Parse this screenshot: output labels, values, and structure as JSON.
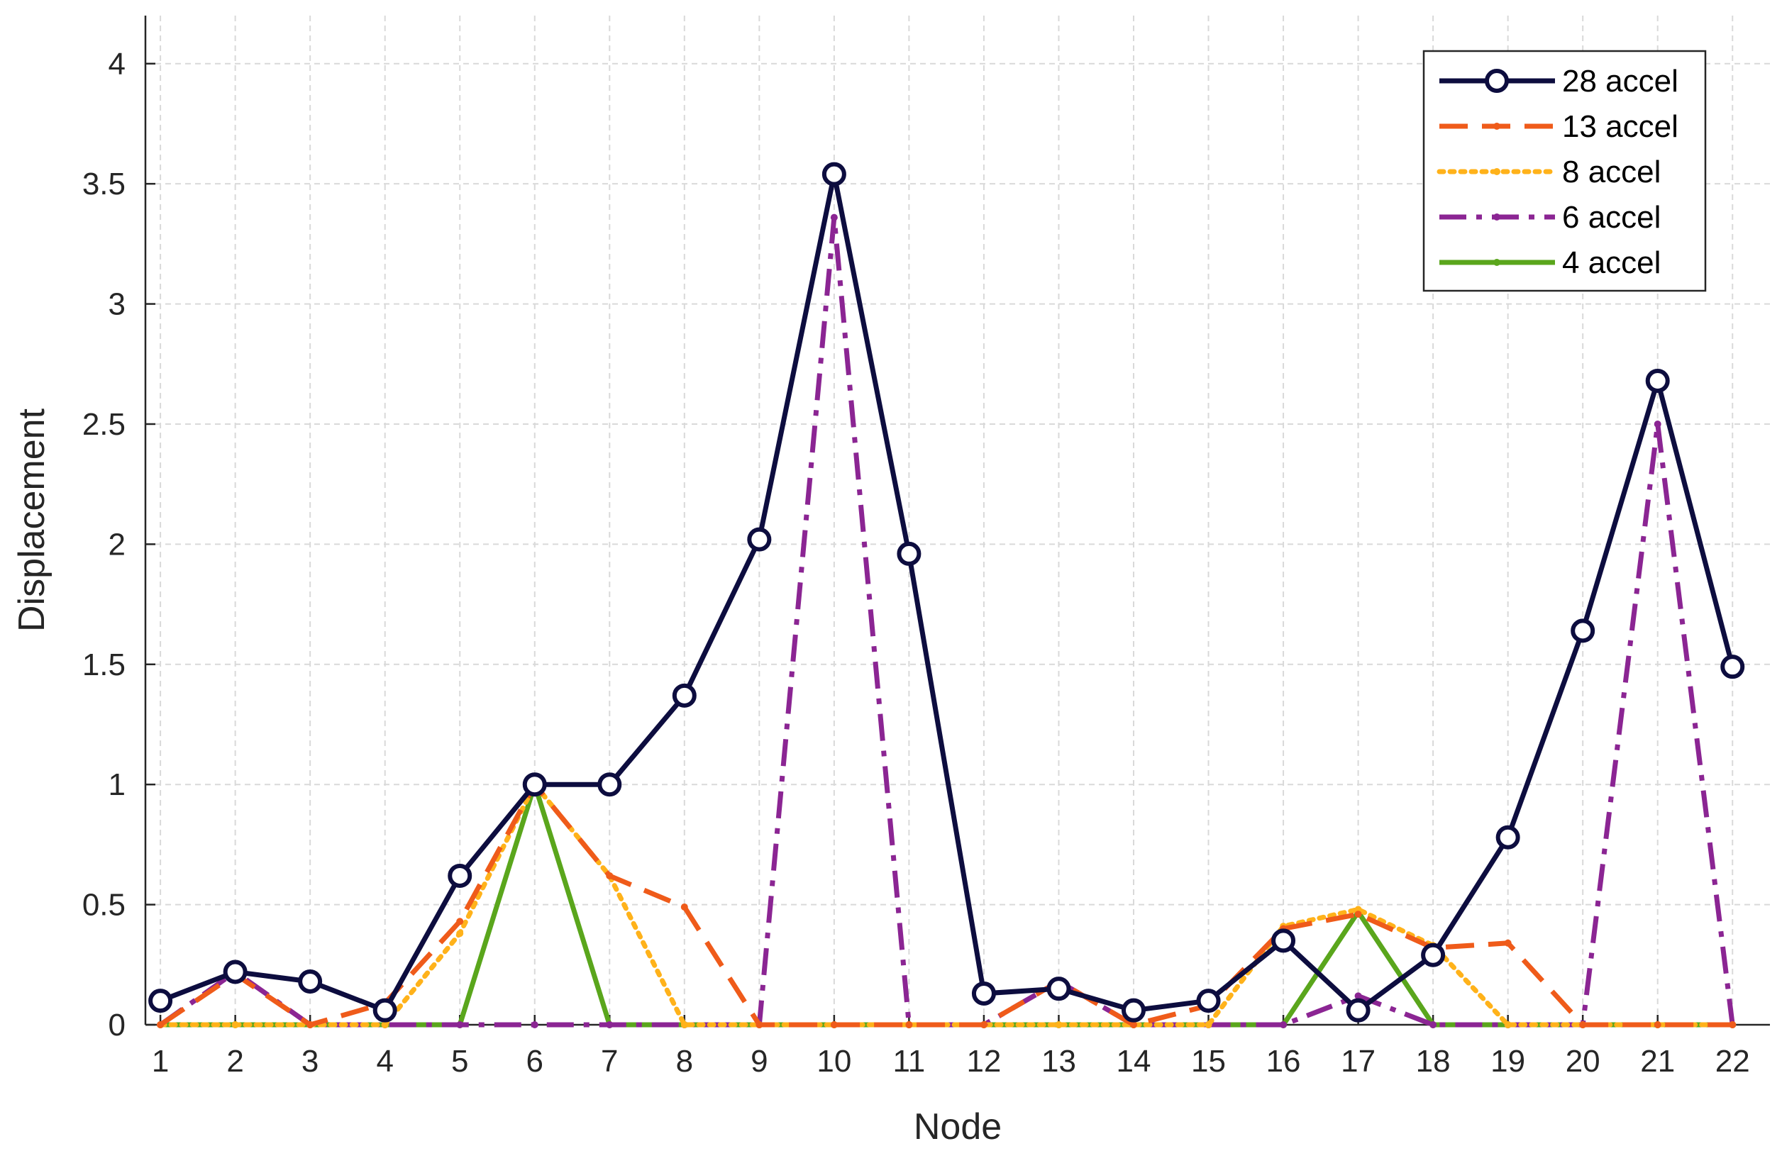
{
  "chart_data": {
    "type": "line",
    "xlabel": "Node",
    "ylabel": "Displacement",
    "x": [
      1,
      2,
      3,
      4,
      5,
      6,
      7,
      8,
      9,
      10,
      11,
      12,
      13,
      14,
      15,
      16,
      17,
      18,
      19,
      20,
      21,
      22
    ],
    "xlim": [
      0.8,
      22.5
    ],
    "ylim": [
      0,
      4.2
    ],
    "yticks": [
      0,
      0.5,
      1,
      1.5,
      2,
      2.5,
      3,
      3.5,
      4
    ],
    "ytick_labels": [
      "0",
      "0.5",
      "1",
      "1.5",
      "2",
      "2.5",
      "3",
      "3.5",
      "4"
    ],
    "grid": true,
    "legend_position": "top-right",
    "series": [
      {
        "name": "28 accel",
        "color": "#0d0d3f",
        "dash": "solid",
        "marker": "circle",
        "values": [
          0.1,
          0.22,
          0.18,
          0.06,
          0.62,
          1.0,
          1.0,
          1.37,
          2.02,
          3.54,
          1.96,
          0.13,
          0.15,
          0.06,
          0.1,
          0.35,
          0.06,
          0.29,
          0.78,
          1.64,
          2.68,
          1.49
        ]
      },
      {
        "name": "13 accel",
        "color": "#ef5b1a",
        "dash": "dashed",
        "marker": "dot",
        "values": [
          0,
          0.21,
          0,
          0.09,
          0.43,
          1.0,
          0.62,
          0.49,
          0,
          0,
          0,
          0,
          0.18,
          0,
          0.08,
          0.4,
          0.46,
          0.32,
          0.34,
          0,
          0,
          0
        ]
      },
      {
        "name": "8 accel",
        "color": "#ffb21a",
        "dash": "dotted",
        "marker": "dot",
        "values": [
          0,
          0,
          0,
          0,
          0.38,
          1.0,
          0.62,
          0,
          0,
          0,
          0,
          0,
          0,
          0,
          0,
          0.41,
          0.48,
          0.33,
          0,
          0,
          0,
          0
        ]
      },
      {
        "name": "6 accel",
        "color": "#8b2593",
        "dash": "dashdot",
        "marker": "dot",
        "values": [
          0,
          0.22,
          0,
          0,
          0,
          0,
          0,
          0,
          0,
          3.36,
          0,
          0,
          0.18,
          0,
          0,
          0,
          0.12,
          0,
          0,
          0,
          2.5,
          0
        ]
      },
      {
        "name": "4 accel",
        "color": "#5aa61c",
        "dash": "solid",
        "marker": "dot",
        "values": [
          0,
          0,
          0,
          0,
          0,
          1.0,
          0,
          0,
          0,
          0,
          0,
          0,
          0,
          0,
          0,
          0,
          0.47,
          0,
          0,
          0,
          0,
          0
        ]
      }
    ]
  }
}
